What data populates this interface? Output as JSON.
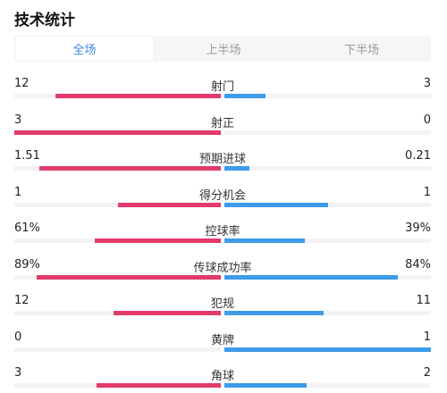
{
  "header": {
    "title": "技术统计"
  },
  "tabs": [
    {
      "label": "全场",
      "active": true
    },
    {
      "label": "上半场",
      "active": false
    },
    {
      "label": "下半场",
      "active": false
    }
  ],
  "colors": {
    "left_bar": "#e23a6a",
    "right_bar": "#3d9be9",
    "active_tab": "#3a8ce5"
  },
  "stats": [
    {
      "name": "射门",
      "left": "12",
      "right": "3",
      "left_fill": 0.8,
      "right_fill": 0.2
    },
    {
      "name": "射正",
      "left": "3",
      "right": "0",
      "left_fill": 1.0,
      "right_fill": 0.0
    },
    {
      "name": "预期进球",
      "left": "1.51",
      "right": "0.21",
      "left_fill": 0.88,
      "right_fill": 0.12
    },
    {
      "name": "得分机会",
      "left": "1",
      "right": "1",
      "left_fill": 0.5,
      "right_fill": 0.5
    },
    {
      "name": "控球率",
      "left": "61%",
      "right": "39%",
      "left_fill": 0.61,
      "right_fill": 0.39
    },
    {
      "name": "传球成功率",
      "left": "89%",
      "right": "84%",
      "left_fill": 0.89,
      "right_fill": 0.84
    },
    {
      "name": "犯规",
      "left": "12",
      "right": "11",
      "left_fill": 0.52,
      "right_fill": 0.48
    },
    {
      "name": "黄牌",
      "left": "0",
      "right": "1",
      "left_fill": 0.0,
      "right_fill": 1.0
    },
    {
      "name": "角球",
      "left": "3",
      "right": "2",
      "left_fill": 0.6,
      "right_fill": 0.4
    }
  ]
}
